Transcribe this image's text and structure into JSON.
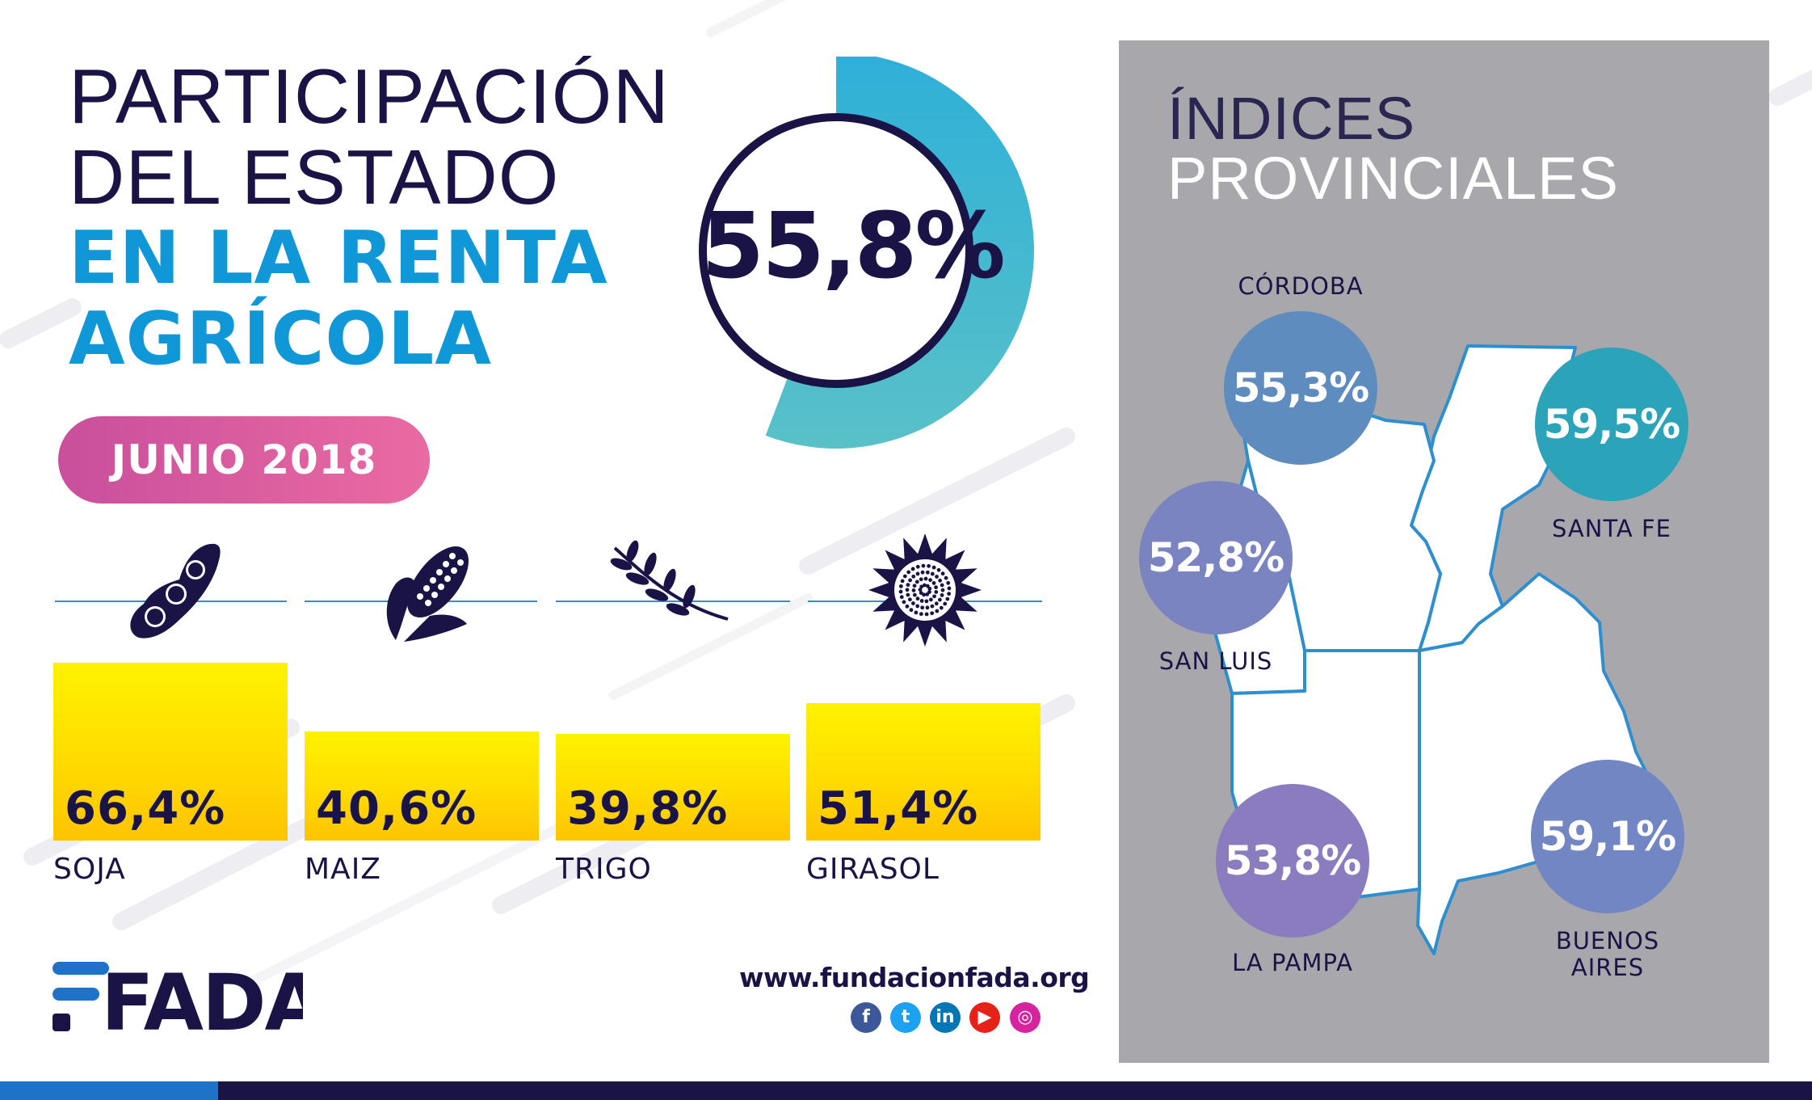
{
  "title": {
    "line1": "PARTICIPACIÓN",
    "line2": "DEL ESTADO",
    "line3": "EN LA RENTA",
    "line4": "AGRÍCOLA"
  },
  "headline": {
    "value_label": "55,8%",
    "value": 55.8
  },
  "date_label": "JUNIO 2018",
  "colors": {
    "navy": "#1a1446",
    "title_blue": "#1097d8",
    "donut_teal": "#35b5d6",
    "bar_yellow": "#ffd900",
    "pill_pink": "#d85aa0",
    "panel_grey": "#a8a7ab"
  },
  "crops": [
    {
      "name": "SOJA",
      "label": "66,4%",
      "icon": "soybean-icon"
    },
    {
      "name": "MAIZ",
      "label": "40,6%",
      "icon": "corn-icon"
    },
    {
      "name": "TRIGO",
      "label": "39,8%",
      "icon": "wheat-icon"
    },
    {
      "name": "GIRASOL",
      "label": "51,4%",
      "icon": "sunflower-icon"
    }
  ],
  "chart_data": [
    {
      "type": "pie",
      "title": "PARTICIPACIÓN DEL ESTADO EN LA RENTA AGRÍCOLA",
      "values": [
        55.8,
        44.2
      ],
      "label": "55,8%"
    },
    {
      "type": "bar",
      "categories": [
        "SOJA",
        "MAIZ",
        "TRIGO",
        "GIRASOL"
      ],
      "values": [
        66.4,
        40.6,
        39.8,
        51.4
      ],
      "data_labels": [
        "66,4%",
        "40,6%",
        "39,8%",
        "51,4%"
      ],
      "ylim": [
        0,
        70
      ],
      "grid": false
    },
    {
      "type": "bar",
      "title": "ÍNDICES PROVINCIALES",
      "categories": [
        "CÓRDOBA",
        "SANTA FE",
        "SAN LUIS",
        "LA PAMPA",
        "BUENOS AIRES"
      ],
      "values": [
        55.3,
        59.5,
        52.8,
        53.8,
        59.1
      ],
      "data_labels": [
        "55,3%",
        "59,5%",
        "52,8%",
        "53,8%",
        "59,1%"
      ]
    }
  ],
  "provincial": {
    "title_line1": "ÍNDICES",
    "title_line2": "PROVINCIALES",
    "items": [
      {
        "name": "CÓRDOBA",
        "label": "55,3%",
        "color": "#5f8cbf"
      },
      {
        "name": "SANTA FE",
        "label": "59,5%",
        "color": "#2ba3b9"
      },
      {
        "name": "SAN LUIS",
        "label": "52,8%",
        "color": "#7a84c1"
      },
      {
        "name": "LA PAMPA",
        "label": "53,8%",
        "color": "#8b7cc0"
      },
      {
        "name": "BUENOS",
        "label": "59,1%",
        "color": "#7286c3"
      }
    ],
    "buenos_aires_line2": "AIRES"
  },
  "footer": {
    "logo": "FADA",
    "url": "www.fundacionfada.org",
    "social": [
      {
        "icon": "facebook-icon",
        "glyph": "f",
        "color": "#3b5998"
      },
      {
        "icon": "twitter-icon",
        "glyph": "t",
        "color": "#1da1f2"
      },
      {
        "icon": "linkedin-icon",
        "glyph": "in",
        "color": "#0077b5"
      },
      {
        "icon": "youtube-icon",
        "glyph": "▶",
        "color": "#e62117"
      },
      {
        "icon": "instagram-icon",
        "glyph": "◎",
        "color": "#d6249f"
      }
    ]
  }
}
